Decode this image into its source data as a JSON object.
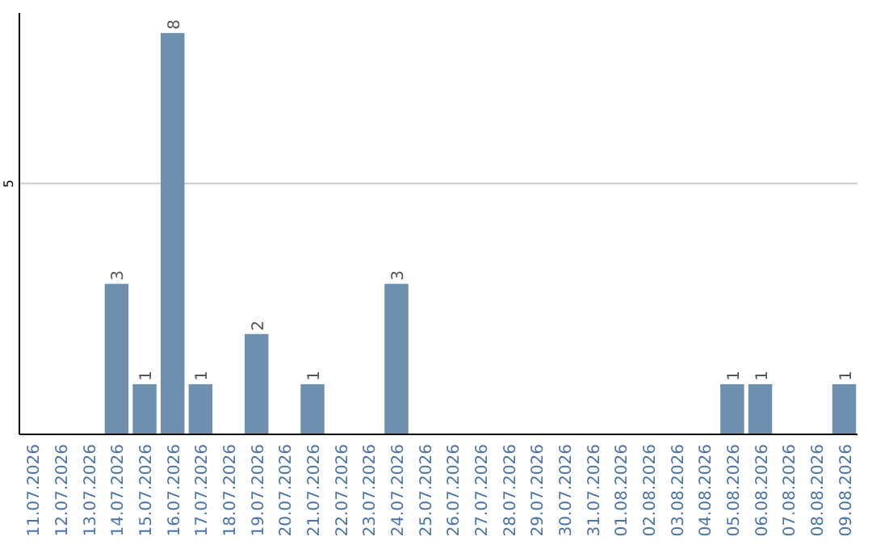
{
  "chart_data": {
    "type": "bar",
    "categories": [
      "11.07.2026",
      "12.07.2026",
      "13.07.2026",
      "14.07.2026",
      "15.07.2026",
      "16.07.2026",
      "17.07.2026",
      "18.07.2026",
      "19.07.2026",
      "20.07.2026",
      "21.07.2026",
      "22.07.2026",
      "23.07.2026",
      "24.07.2026",
      "25.07.2026",
      "26.07.2026",
      "27.07.2026",
      "28.07.2026",
      "29.07.2026",
      "30.07.2026",
      "31.07.2026",
      "01.08.2026",
      "02.08.2026",
      "03.08.2026",
      "04.08.2026",
      "05.08.2026",
      "06.08.2026",
      "07.08.2026",
      "08.08.2026",
      "09.08.2026"
    ],
    "values": [
      0,
      0,
      0,
      3,
      1,
      8,
      1,
      0,
      2,
      0,
      1,
      0,
      0,
      3,
      0,
      0,
      0,
      0,
      0,
      0,
      0,
      0,
      0,
      0,
      0,
      1,
      1,
      0,
      0,
      1
    ],
    "value_labels": [
      null,
      null,
      null,
      "3",
      "1",
      "8",
      "1",
      null,
      "2",
      null,
      "1",
      null,
      null,
      "3",
      null,
      null,
      null,
      null,
      null,
      null,
      null,
      null,
      null,
      null,
      null,
      "1",
      "1",
      null,
      null,
      "1"
    ],
    "color": "#6e8fad",
    "ylim": [
      0,
      8.4
    ],
    "yticks": [
      5
    ],
    "grid": "y"
  }
}
